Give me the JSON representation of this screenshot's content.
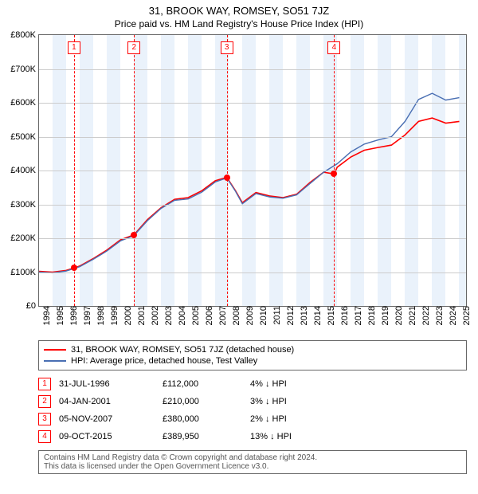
{
  "title": "31, BROOK WAY, ROMSEY, SO51 7JZ",
  "subtitle": "Price paid vs. HM Land Registry's House Price Index (HPI)",
  "chart": {
    "type": "line",
    "background_color": "#ffffff",
    "band_color": "#eaf2fb",
    "grid_color": "#cccccc",
    "border_color": "#666666",
    "x_min": 1994,
    "x_max": 2025.5,
    "x_ticks": [
      1994,
      1995,
      1996,
      1997,
      1998,
      1999,
      2000,
      2001,
      2002,
      2003,
      2004,
      2005,
      2006,
      2007,
      2008,
      2009,
      2010,
      2011,
      2012,
      2013,
      2014,
      2015,
      2016,
      2017,
      2018,
      2019,
      2020,
      2021,
      2022,
      2023,
      2024,
      2025
    ],
    "y_min": 0,
    "y_max": 800000,
    "y_ticks": [
      0,
      100000,
      200000,
      300000,
      400000,
      500000,
      600000,
      700000,
      800000
    ],
    "y_tick_labels": [
      "£0",
      "£100K",
      "£200K",
      "£300K",
      "£400K",
      "£500K",
      "£600K",
      "£700K",
      "£800K"
    ],
    "band_years": [
      1995,
      1997,
      1999,
      2001,
      2003,
      2005,
      2007,
      2009,
      2011,
      2013,
      2015,
      2017,
      2019,
      2021,
      2023,
      2025
    ],
    "series": [
      {
        "name": "property",
        "color": "#ff0000",
        "width": 1.6,
        "points": [
          [
            1994.0,
            102000
          ],
          [
            1995.0,
            100000
          ],
          [
            1996.0,
            105000
          ],
          [
            1996.58,
            112000
          ],
          [
            1997.0,
            118000
          ],
          [
            1998.0,
            140000
          ],
          [
            1999.0,
            165000
          ],
          [
            2000.0,
            195000
          ],
          [
            2001.0,
            210000
          ],
          [
            2002.0,
            255000
          ],
          [
            2003.0,
            290000
          ],
          [
            2004.0,
            315000
          ],
          [
            2005.0,
            320000
          ],
          [
            2006.0,
            340000
          ],
          [
            2007.0,
            370000
          ],
          [
            2007.85,
            380000
          ],
          [
            2008.5,
            340000
          ],
          [
            2009.0,
            305000
          ],
          [
            2010.0,
            335000
          ],
          [
            2011.0,
            325000
          ],
          [
            2012.0,
            320000
          ],
          [
            2013.0,
            330000
          ],
          [
            2014.0,
            365000
          ],
          [
            2015.0,
            395000
          ],
          [
            2015.77,
            389950
          ],
          [
            2016.0,
            410000
          ],
          [
            2017.0,
            440000
          ],
          [
            2018.0,
            460000
          ],
          [
            2019.0,
            468000
          ],
          [
            2020.0,
            475000
          ],
          [
            2021.0,
            505000
          ],
          [
            2022.0,
            545000
          ],
          [
            2023.0,
            555000
          ],
          [
            2024.0,
            540000
          ],
          [
            2025.0,
            545000
          ]
        ]
      },
      {
        "name": "hpi",
        "color": "#4a6fb3",
        "width": 1.4,
        "points": [
          [
            1994.0,
            100000
          ],
          [
            1995.0,
            98000
          ],
          [
            1996.0,
            103000
          ],
          [
            1997.0,
            116000
          ],
          [
            1998.0,
            138000
          ],
          [
            1999.0,
            162000
          ],
          [
            2000.0,
            192000
          ],
          [
            2001.0,
            208000
          ],
          [
            2002.0,
            252000
          ],
          [
            2003.0,
            288000
          ],
          [
            2004.0,
            312000
          ],
          [
            2005.0,
            316000
          ],
          [
            2006.0,
            336000
          ],
          [
            2007.0,
            366000
          ],
          [
            2007.85,
            378000
          ],
          [
            2008.5,
            338000
          ],
          [
            2009.0,
            302000
          ],
          [
            2010.0,
            332000
          ],
          [
            2011.0,
            322000
          ],
          [
            2012.0,
            318000
          ],
          [
            2013.0,
            328000
          ],
          [
            2014.0,
            362000
          ],
          [
            2015.0,
            395000
          ],
          [
            2016.0,
            420000
          ],
          [
            2017.0,
            455000
          ],
          [
            2018.0,
            478000
          ],
          [
            2019.0,
            490000
          ],
          [
            2020.0,
            500000
          ],
          [
            2021.0,
            545000
          ],
          [
            2022.0,
            610000
          ],
          [
            2023.0,
            628000
          ],
          [
            2024.0,
            608000
          ],
          [
            2025.0,
            615000
          ]
        ]
      }
    ],
    "ref_lines": [
      {
        "n": "1",
        "x": 1996.58
      },
      {
        "n": "2",
        "x": 2001.01
      },
      {
        "n": "3",
        "x": 2007.85
      },
      {
        "n": "4",
        "x": 2015.77
      }
    ],
    "markers": [
      {
        "x": 1996.58,
        "y": 112000,
        "color": "#ff0000"
      },
      {
        "x": 2001.01,
        "y": 210000,
        "color": "#ff0000"
      },
      {
        "x": 2007.85,
        "y": 380000,
        "color": "#ff0000"
      },
      {
        "x": 2015.77,
        "y": 389950,
        "color": "#ff0000"
      }
    ],
    "tick_fontsize_pt": 11
  },
  "legend": {
    "items": [
      {
        "color": "#ff0000",
        "label": " 31, BROOK WAY, ROMSEY, SO51 7JZ (detached house)"
      },
      {
        "color": "#4a6fb3",
        "label": " HPI: Average price, detached house, Test Valley"
      }
    ]
  },
  "sales": {
    "rows": [
      {
        "n": "1",
        "date": "31-JUL-1996",
        "price": "£112,000",
        "delta": "4% ↓ HPI"
      },
      {
        "n": "2",
        "date": "04-JAN-2001",
        "price": "£210,000",
        "delta": "3% ↓ HPI"
      },
      {
        "n": "3",
        "date": "05-NOV-2007",
        "price": "£380,000",
        "delta": "2% ↓ HPI"
      },
      {
        "n": "4",
        "date": "09-OCT-2015",
        "price": "£389,950",
        "delta": "13% ↓ HPI"
      }
    ]
  },
  "footer": {
    "line1": "Contains HM Land Registry data © Crown copyright and database right 2024.",
    "line2": "This data is licensed under the Open Government Licence v3.0."
  }
}
